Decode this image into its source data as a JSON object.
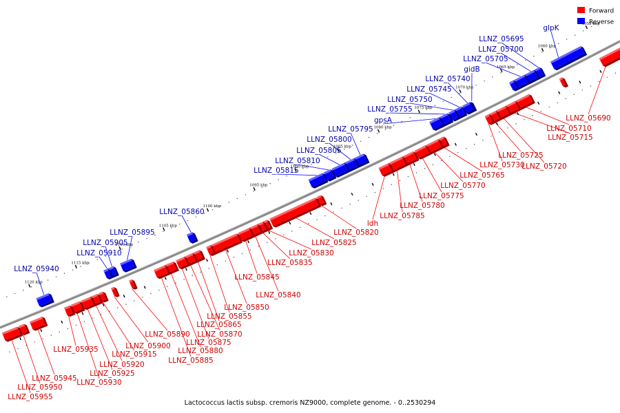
{
  "legend": [
    {
      "label": "Forward",
      "color": "#ff0000"
    },
    {
      "label": "Reverse",
      "color": "#0000ff"
    }
  ],
  "caption": "Lactococcus lactis subsp. cremoris NZ9000, complete genome. - 0..2530294",
  "colors": {
    "forward": "#ff0000",
    "reverse": "#0000ff",
    "backbone": "#888888"
  },
  "ticks": [
    "1055 kbp",
    "1060 kbp",
    "1065 kbp",
    "1070 kbp",
    "1075 kbp",
    "1080 kbp",
    "1085 kbp",
    "1090 kbp",
    "1095 kbp",
    "1100 kbp",
    "1105 kbp",
    "1110 kbp",
    "1115 kbp",
    "1120 kbp"
  ],
  "reverse_labels": [
    "glpK",
    "LLNZ_05695",
    "LLNZ_05700",
    "LLNZ_05705",
    "gidB",
    "LLNZ_05740",
    "LLNZ_05745",
    "LLNZ_05750",
    "LLNZ_05755",
    "gpsA",
    "LLNZ_05795",
    "LLNZ_05800",
    "LLNZ_05805",
    "LLNZ_05810",
    "LLNZ_05815",
    "LLNZ_05860",
    "LLNZ_05895",
    "LLNZ_05905",
    "LLNZ_05910",
    "LLNZ_05940"
  ],
  "forward_labels": [
    "LLNZ_05690",
    "LLNZ_05710",
    "LLNZ_05715",
    "LLNZ_05720",
    "LLNZ_05725",
    "LLNZ_05730",
    "LLNZ_05765",
    "LLNZ_05770",
    "LLNZ_05775",
    "LLNZ_05780",
    "LLNZ_05785",
    "ldh",
    "LLNZ_05820",
    "LLNZ_05825",
    "LLNZ_05830",
    "LLNZ_05835",
    "LLNZ_05840",
    "LLNZ_05845",
    "LLNZ_05850",
    "LLNZ_05855",
    "LLNZ_05865",
    "LLNZ_05870",
    "LLNZ_05875",
    "LLNZ_05880",
    "LLNZ_05885",
    "LLNZ_05890",
    "LLNZ_05900",
    "LLNZ_05915",
    "LLNZ_05920",
    "LLNZ_05925",
    "LLNZ_05930",
    "LLNZ_05935",
    "LLNZ_05945",
    "LLNZ_05950",
    "LLNZ_05955"
  ]
}
